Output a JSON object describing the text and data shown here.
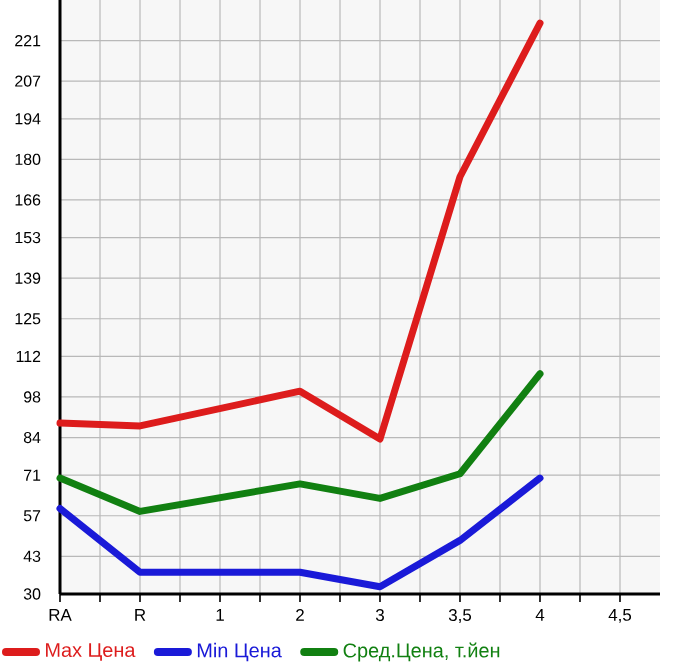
{
  "chart_data": {
    "type": "line",
    "categories": [
      "RA",
      "R",
      "1",
      "2",
      "3",
      "3,5",
      "4",
      "4,5"
    ],
    "series": [
      {
        "name": "Max Цена",
        "color": "#dd1c1c",
        "values": [
          89,
          88,
          null,
          100,
          83.5,
          174,
          227,
          null
        ]
      },
      {
        "name": "Min Цена",
        "color": "#1a1ad8",
        "values": [
          59.5,
          37.5,
          null,
          37.5,
          32.5,
          48.5,
          70,
          null
        ]
      },
      {
        "name": "Сред.Цена, т.йен",
        "color": "#118011",
        "values": [
          70,
          58.5,
          null,
          68,
          63,
          71.5,
          106,
          null
        ]
      }
    ],
    "ylim": [
      30,
      235
    ],
    "yticks": [
      30,
      43,
      57,
      71,
      84,
      98,
      112,
      125,
      139,
      153,
      166,
      180,
      194,
      207,
      221
    ],
    "grid": true,
    "legend": "bottom",
    "marker": "none",
    "line_style": "solid"
  }
}
